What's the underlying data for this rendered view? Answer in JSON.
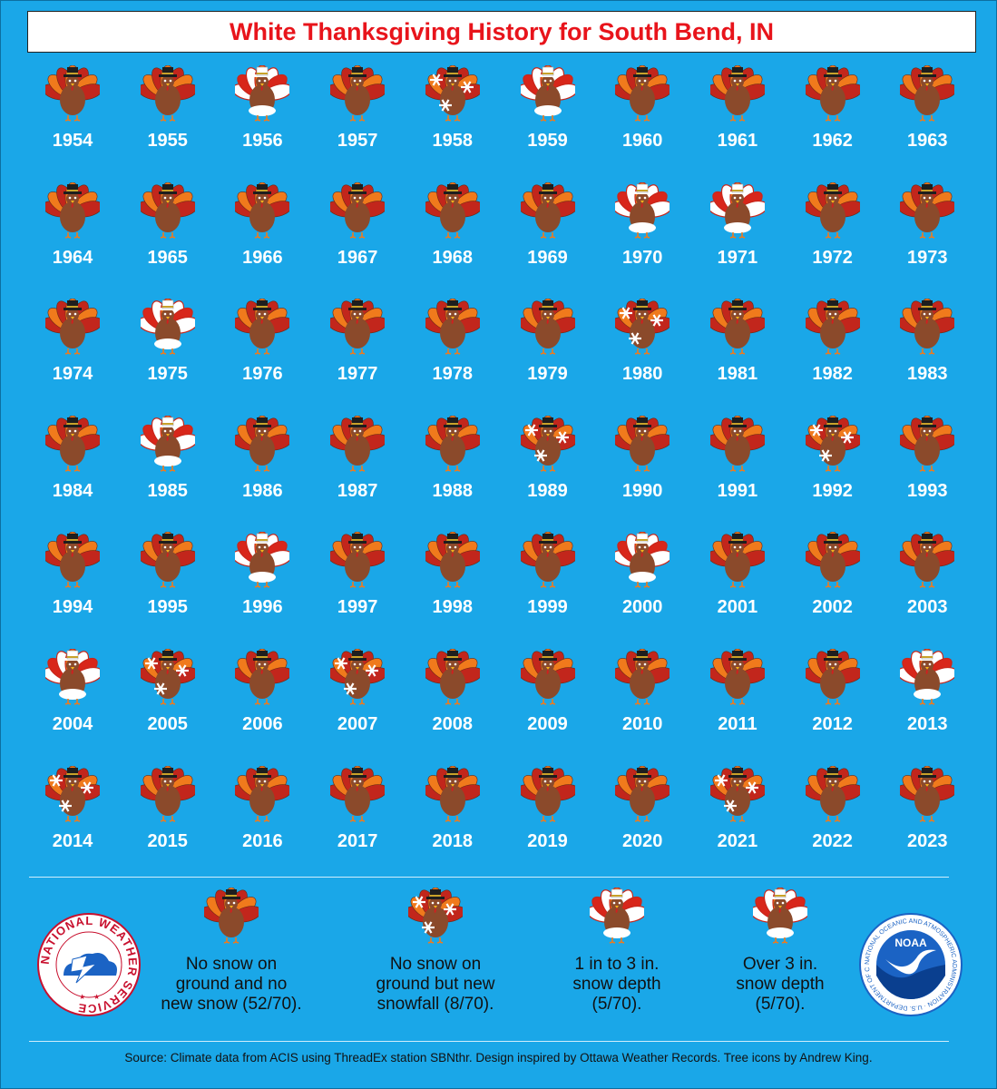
{
  "title": "White Thanksgiving History for South Bend, IN",
  "colors": {
    "background": "#1aa7e8",
    "title_text": "#e8141b",
    "year_text": "#ffffff",
    "turkey_body": "#8b4a2b",
    "feather_orange": "#f07a1c",
    "feather_red": "#c2261c",
    "hat": "#1e1e1e"
  },
  "chart_data": {
    "type": "table",
    "title": "White Thanksgiving History for South Bend, IN",
    "categories": {
      "none": "No snow on ground and no new snow (52/70).",
      "new_snow": "No snow on ground but new snowfall (8/70).",
      "1to3": "1 in to 3 in. snow depth (5/70).",
      "over3": "Over 3 in. snow depth (5/70)."
    },
    "years": [
      {
        "year": "1954",
        "category": "none"
      },
      {
        "year": "1955",
        "category": "none"
      },
      {
        "year": "1956",
        "category": "1to3"
      },
      {
        "year": "1957",
        "category": "none"
      },
      {
        "year": "1958",
        "category": "new_snow"
      },
      {
        "year": "1959",
        "category": "1to3"
      },
      {
        "year": "1960",
        "category": "none"
      },
      {
        "year": "1961",
        "category": "none"
      },
      {
        "year": "1962",
        "category": "none"
      },
      {
        "year": "1963",
        "category": "none"
      },
      {
        "year": "1964",
        "category": "none"
      },
      {
        "year": "1965",
        "category": "none"
      },
      {
        "year": "1966",
        "category": "none"
      },
      {
        "year": "1967",
        "category": "none"
      },
      {
        "year": "1968",
        "category": "none"
      },
      {
        "year": "1969",
        "category": "none"
      },
      {
        "year": "1970",
        "category": "over3"
      },
      {
        "year": "1971",
        "category": "1to3"
      },
      {
        "year": "1972",
        "category": "none"
      },
      {
        "year": "1973",
        "category": "none"
      },
      {
        "year": "1974",
        "category": "none"
      },
      {
        "year": "1975",
        "category": "over3"
      },
      {
        "year": "1976",
        "category": "none"
      },
      {
        "year": "1977",
        "category": "none"
      },
      {
        "year": "1978",
        "category": "none"
      },
      {
        "year": "1979",
        "category": "none"
      },
      {
        "year": "1980",
        "category": "new_snow"
      },
      {
        "year": "1981",
        "category": "none"
      },
      {
        "year": "1982",
        "category": "none"
      },
      {
        "year": "1983",
        "category": "none"
      },
      {
        "year": "1984",
        "category": "none"
      },
      {
        "year": "1985",
        "category": "1to3"
      },
      {
        "year": "1986",
        "category": "none"
      },
      {
        "year": "1987",
        "category": "none"
      },
      {
        "year": "1988",
        "category": "none"
      },
      {
        "year": "1989",
        "category": "new_snow"
      },
      {
        "year": "1990",
        "category": "none"
      },
      {
        "year": "1991",
        "category": "none"
      },
      {
        "year": "1992",
        "category": "new_snow"
      },
      {
        "year": "1993",
        "category": "none"
      },
      {
        "year": "1994",
        "category": "none"
      },
      {
        "year": "1995",
        "category": "none"
      },
      {
        "year": "1996",
        "category": "1to3"
      },
      {
        "year": "1997",
        "category": "none"
      },
      {
        "year": "1998",
        "category": "none"
      },
      {
        "year": "1999",
        "category": "none"
      },
      {
        "year": "2000",
        "category": "over3"
      },
      {
        "year": "2001",
        "category": "none"
      },
      {
        "year": "2002",
        "category": "none"
      },
      {
        "year": "2003",
        "category": "none"
      },
      {
        "year": "2004",
        "category": "over3"
      },
      {
        "year": "2005",
        "category": "new_snow"
      },
      {
        "year": "2006",
        "category": "none"
      },
      {
        "year": "2007",
        "category": "new_snow"
      },
      {
        "year": "2008",
        "category": "none"
      },
      {
        "year": "2009",
        "category": "none"
      },
      {
        "year": "2010",
        "category": "none"
      },
      {
        "year": "2011",
        "category": "none"
      },
      {
        "year": "2012",
        "category": "none"
      },
      {
        "year": "2013",
        "category": "over3"
      },
      {
        "year": "2014",
        "category": "new_snow"
      },
      {
        "year": "2015",
        "category": "none"
      },
      {
        "year": "2016",
        "category": "none"
      },
      {
        "year": "2017",
        "category": "none"
      },
      {
        "year": "2018",
        "category": "none"
      },
      {
        "year": "2019",
        "category": "none"
      },
      {
        "year": "2020",
        "category": "none"
      },
      {
        "year": "2021",
        "category": "new_snow"
      },
      {
        "year": "2022",
        "category": "none"
      },
      {
        "year": "2023",
        "category": "none"
      }
    ]
  },
  "legend": [
    {
      "category": "none",
      "text": "No snow on\nground and no\nnew snow (52/70)."
    },
    {
      "category": "new_snow",
      "text": "No snow on\nground but new\nsnowfall (8/70)."
    },
    {
      "category": "1to3",
      "text": "1 in to 3 in.\nsnow depth\n(5/70)."
    },
    {
      "category": "over3",
      "text": "Over 3 in.\nsnow depth\n(5/70)."
    }
  ],
  "logos": {
    "nws": {
      "icon": "nws-logo-icon",
      "text": "NATIONAL WEATHER SERVICE"
    },
    "noaa": {
      "icon": "noaa-logo-icon",
      "text": "NOAA",
      "ring_text": "NATIONAL OCEANIC AND ATMOSPHERIC ADMINISTRATION · U.S. DEPARTMENT OF COMMERCE"
    }
  },
  "source": "Source: Climate data from ACIS using ThreadEx station SBNthr. Design inspired by Ottawa Weather Records. Tree icons by Andrew King."
}
